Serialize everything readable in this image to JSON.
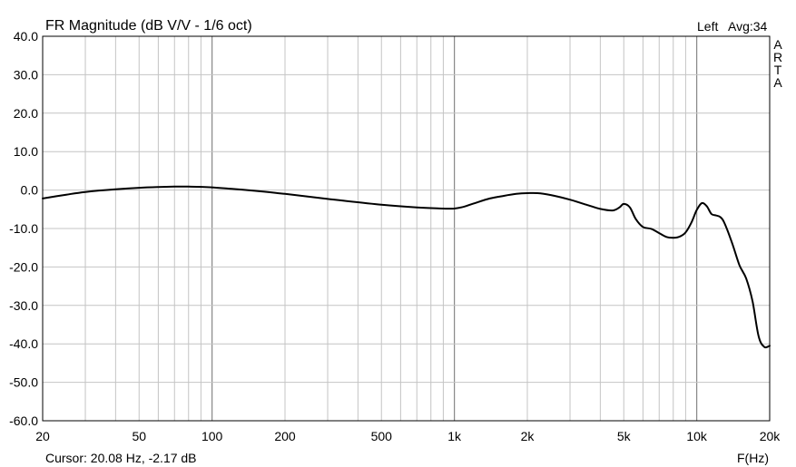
{
  "chart_data": {
    "type": "line",
    "title": "FR Magnitude (dB V/V - 1/6 oct)",
    "channel": "Left",
    "average": "Avg:34",
    "brand": "ARTA",
    "xlabel": "F(Hz)",
    "ylabel": "",
    "x_scale": "log",
    "xlim": [
      20,
      20000
    ],
    "ylim": [
      -60,
      40
    ],
    "grid": true,
    "x_ticks": [
      {
        "value": 20,
        "label": "20"
      },
      {
        "value": 50,
        "label": "50"
      },
      {
        "value": 100,
        "label": "100"
      },
      {
        "value": 200,
        "label": "200"
      },
      {
        "value": 500,
        "label": "500"
      },
      {
        "value": 1000,
        "label": "1k"
      },
      {
        "value": 2000,
        "label": "2k"
      },
      {
        "value": 5000,
        "label": "5k"
      },
      {
        "value": 10000,
        "label": "10k"
      },
      {
        "value": 20000,
        "label": "20k"
      }
    ],
    "y_ticks": [
      {
        "value": 40,
        "label": "40.0"
      },
      {
        "value": 30,
        "label": "30.0"
      },
      {
        "value": 20,
        "label": "20.0"
      },
      {
        "value": 10,
        "label": "10.0"
      },
      {
        "value": 0,
        "label": "0.0"
      },
      {
        "value": -10,
        "label": "-10.0"
      },
      {
        "value": -20,
        "label": "-20.0"
      },
      {
        "value": -30,
        "label": "-30.0"
      },
      {
        "value": -40,
        "label": "-40.0"
      },
      {
        "value": -50,
        "label": "-50.0"
      },
      {
        "value": -60,
        "label": "-60.0"
      }
    ],
    "series": [
      {
        "color": "#000000",
        "x": [
          20,
          25,
          30,
          40,
          50,
          60,
          70,
          80,
          100,
          150,
          200,
          300,
          500,
          700,
          900,
          1000,
          1100,
          1200,
          1400,
          1600,
          1800,
          2000,
          2200,
          2500,
          3000,
          3500,
          4000,
          4500,
          4800,
          5000,
          5300,
          5600,
          6000,
          6500,
          7000,
          7500,
          8000,
          8500,
          9000,
          9500,
          10000,
          10500,
          11000,
          11500,
          12000,
          12500,
          13000,
          14000,
          15000,
          16000,
          17000,
          18000,
          19000,
          20000
        ],
        "y": [
          -2.2,
          -1.2,
          -0.5,
          0.2,
          0.6,
          0.8,
          0.9,
          0.9,
          0.7,
          -0.2,
          -1.0,
          -2.3,
          -3.8,
          -4.5,
          -4.8,
          -4.8,
          -4.3,
          -3.5,
          -2.2,
          -1.5,
          -1.0,
          -0.8,
          -0.8,
          -1.3,
          -2.5,
          -3.8,
          -4.9,
          -5.3,
          -4.5,
          -3.6,
          -4.5,
          -7.5,
          -9.6,
          -10.1,
          -11.2,
          -12.2,
          -12.4,
          -12.1,
          -11.0,
          -8.5,
          -5.2,
          -3.4,
          -4.2,
          -6.2,
          -6.6,
          -7.0,
          -8.5,
          -13.8,
          -19.5,
          -23.0,
          -29.0,
          -38.0,
          -40.8,
          -40.5
        ]
      }
    ]
  },
  "status": {
    "cursor": "Cursor: 20.08 Hz, -2.17 dB"
  }
}
